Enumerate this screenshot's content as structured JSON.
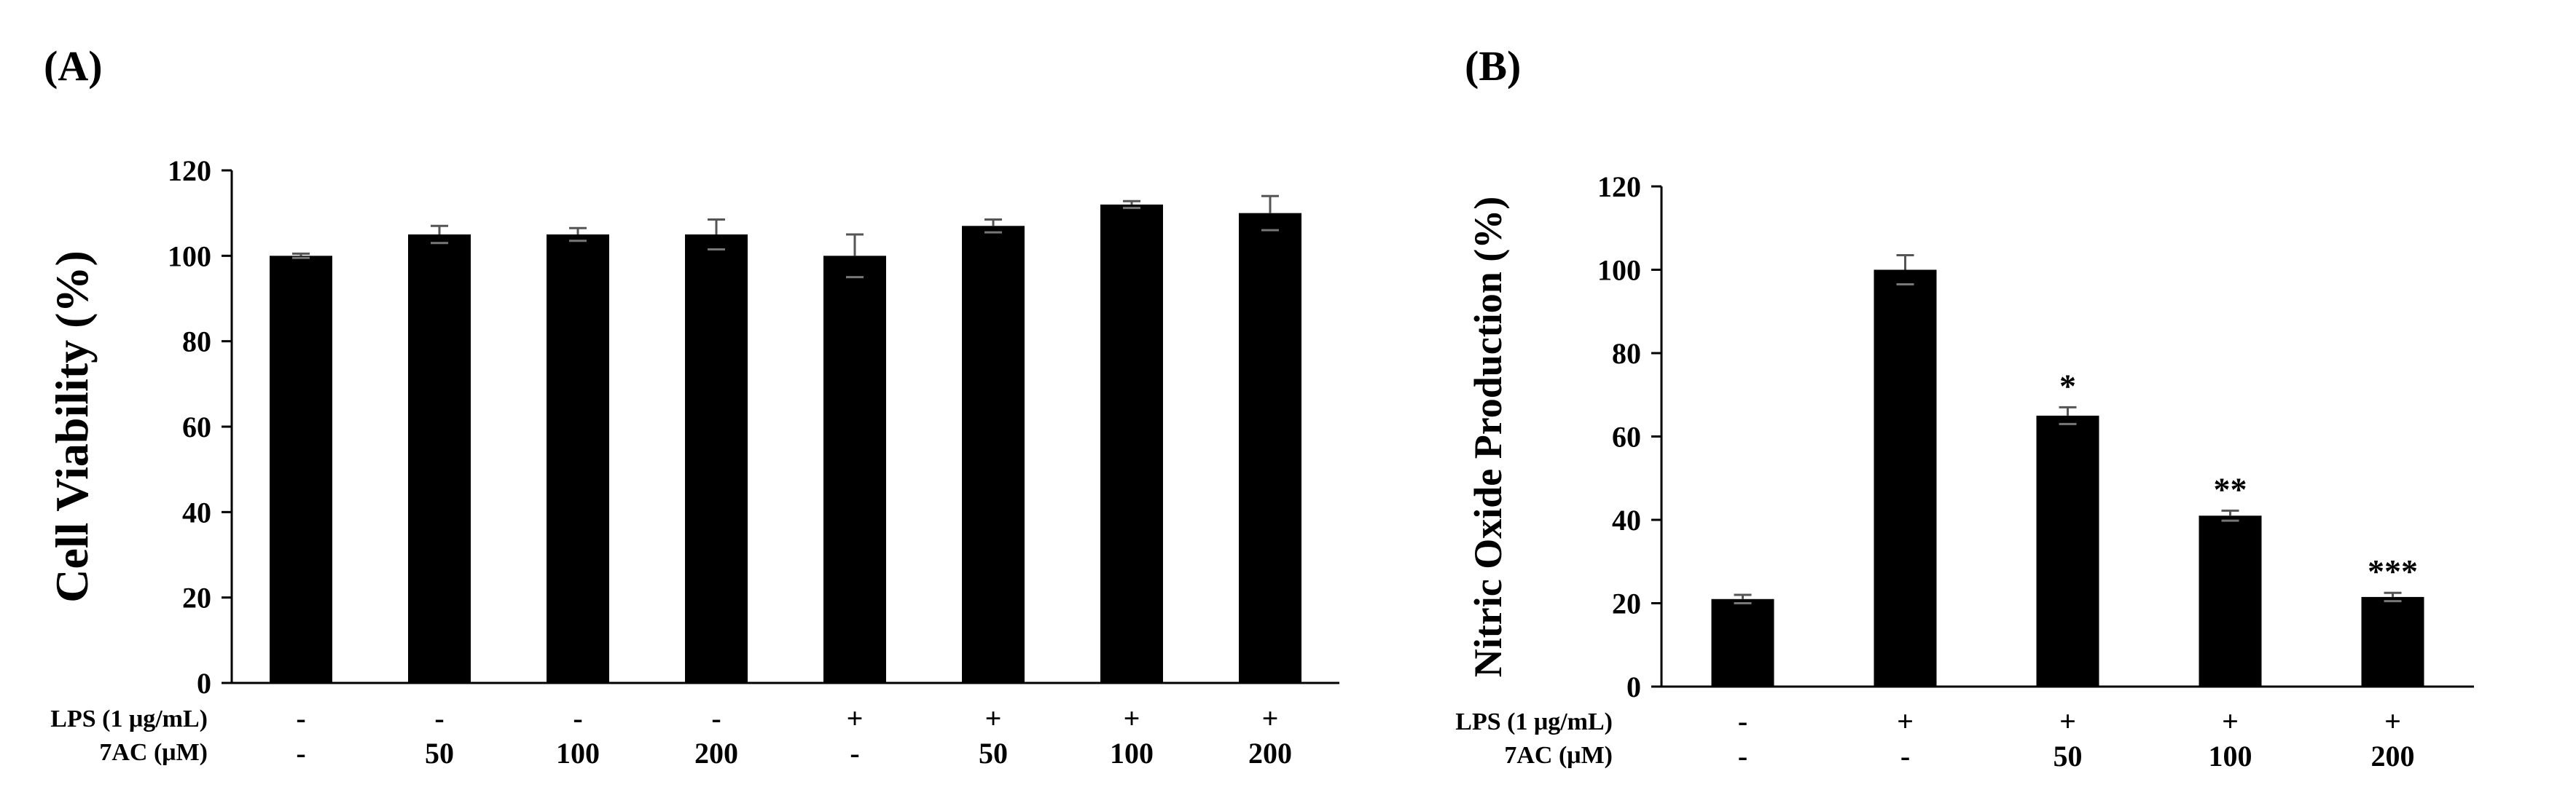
{
  "chart_data": [
    {
      "panel": "(A)",
      "type": "bar",
      "ylabel": "Cell Viability (%)",
      "ylim": [
        0,
        120
      ],
      "yticks": [
        0,
        20,
        40,
        60,
        80,
        100,
        120
      ],
      "row_labels": [
        "LPS (1 μg/mL)",
        "7AC (μM)"
      ],
      "conditions": [
        {
          "lps": "-",
          "ac": "-"
        },
        {
          "lps": "-",
          "ac": "50"
        },
        {
          "lps": "-",
          "ac": "100"
        },
        {
          "lps": "-",
          "ac": "200"
        },
        {
          "lps": "+",
          "ac": "-"
        },
        {
          "lps": "+",
          "ac": "50"
        },
        {
          "lps": "+",
          "ac": "100"
        },
        {
          "lps": "+",
          "ac": "200"
        }
      ],
      "values": [
        100,
        105,
        105,
        105,
        100,
        107,
        112,
        110
      ],
      "errors": [
        0.5,
        2,
        1.5,
        3.5,
        5,
        1.5,
        0.8,
        4
      ],
      "significance": [
        "",
        "",
        "",
        "",
        "",
        "",
        "",
        ""
      ]
    },
    {
      "panel": "(B)",
      "type": "bar",
      "ylabel": "Nitric Oxide Production (%)",
      "ylim": [
        0,
        120
      ],
      "yticks": [
        0,
        20,
        40,
        60,
        80,
        100,
        120
      ],
      "row_labels": [
        "LPS (1 μg/mL)",
        "7AC (μM)"
      ],
      "conditions": [
        {
          "lps": "-",
          "ac": "-"
        },
        {
          "lps": "+",
          "ac": "-"
        },
        {
          "lps": "+",
          "ac": "50"
        },
        {
          "lps": "+",
          "ac": "100"
        },
        {
          "lps": "+",
          "ac": "200"
        }
      ],
      "values": [
        21,
        100,
        65,
        41,
        21.5
      ],
      "errors": [
        1,
        3.5,
        2,
        1.2,
        1
      ],
      "significance": [
        "",
        "",
        "*",
        "**",
        "***"
      ]
    }
  ]
}
